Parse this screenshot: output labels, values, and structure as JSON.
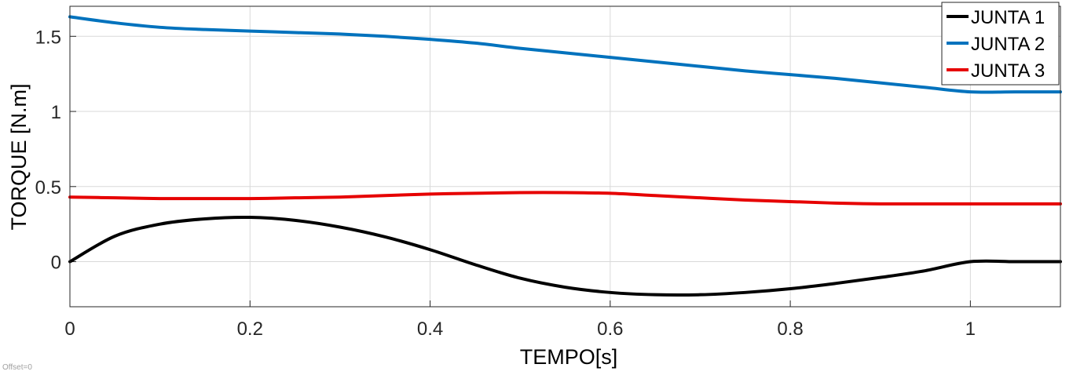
{
  "chart_data": {
    "type": "line",
    "title": "",
    "xlabel": "TEMPO[s]",
    "ylabel": "TORQUE [N.m]",
    "xlim": [
      0,
      1.1
    ],
    "ylim": [
      -0.3,
      1.7
    ],
    "grid": true,
    "legend_position": "top-right",
    "xticks": [
      0,
      0.2,
      0.4,
      0.6,
      0.8,
      1
    ],
    "xtick_labels": [
      "0",
      "0.2",
      "0.4",
      "0.6",
      "0.8",
      "1"
    ],
    "yticks": [
      0,
      0.5,
      1,
      1.5
    ],
    "ytick_labels": [
      "0",
      "0.5",
      "1",
      "1.5"
    ],
    "x": [
      0,
      0.05,
      0.1,
      0.15,
      0.2,
      0.25,
      0.3,
      0.35,
      0.4,
      0.45,
      0.5,
      0.55,
      0.6,
      0.65,
      0.7,
      0.75,
      0.8,
      0.85,
      0.9,
      0.95,
      1.0,
      1.05,
      1.1
    ],
    "series": [
      {
        "name": "JUNTA 1",
        "color": "#000000",
        "values": [
          0.0,
          0.17,
          0.25,
          0.285,
          0.295,
          0.275,
          0.23,
          0.165,
          0.08,
          -0.02,
          -0.11,
          -0.17,
          -0.205,
          -0.22,
          -0.22,
          -0.205,
          -0.18,
          -0.145,
          -0.105,
          -0.06,
          0.0,
          0.0,
          0.0
        ]
      },
      {
        "name": "JUNTA 2",
        "color": "#0072BD",
        "values": [
          1.63,
          1.59,
          1.56,
          1.545,
          1.535,
          1.525,
          1.515,
          1.5,
          1.48,
          1.455,
          1.42,
          1.39,
          1.36,
          1.33,
          1.3,
          1.27,
          1.245,
          1.22,
          1.19,
          1.16,
          1.13,
          1.13,
          1.13
        ]
      },
      {
        "name": "JUNTA 3",
        "color": "#E60000",
        "values": [
          0.43,
          0.425,
          0.42,
          0.42,
          0.42,
          0.425,
          0.43,
          0.44,
          0.45,
          0.455,
          0.46,
          0.46,
          0.455,
          0.44,
          0.425,
          0.41,
          0.4,
          0.39,
          0.385,
          0.385,
          0.385,
          0.385,
          0.385
        ]
      }
    ]
  },
  "footer": {
    "offset_label": "Offset=0"
  },
  "colors": {
    "axes_border": "#262626",
    "grid": "#d9d9d9"
  }
}
